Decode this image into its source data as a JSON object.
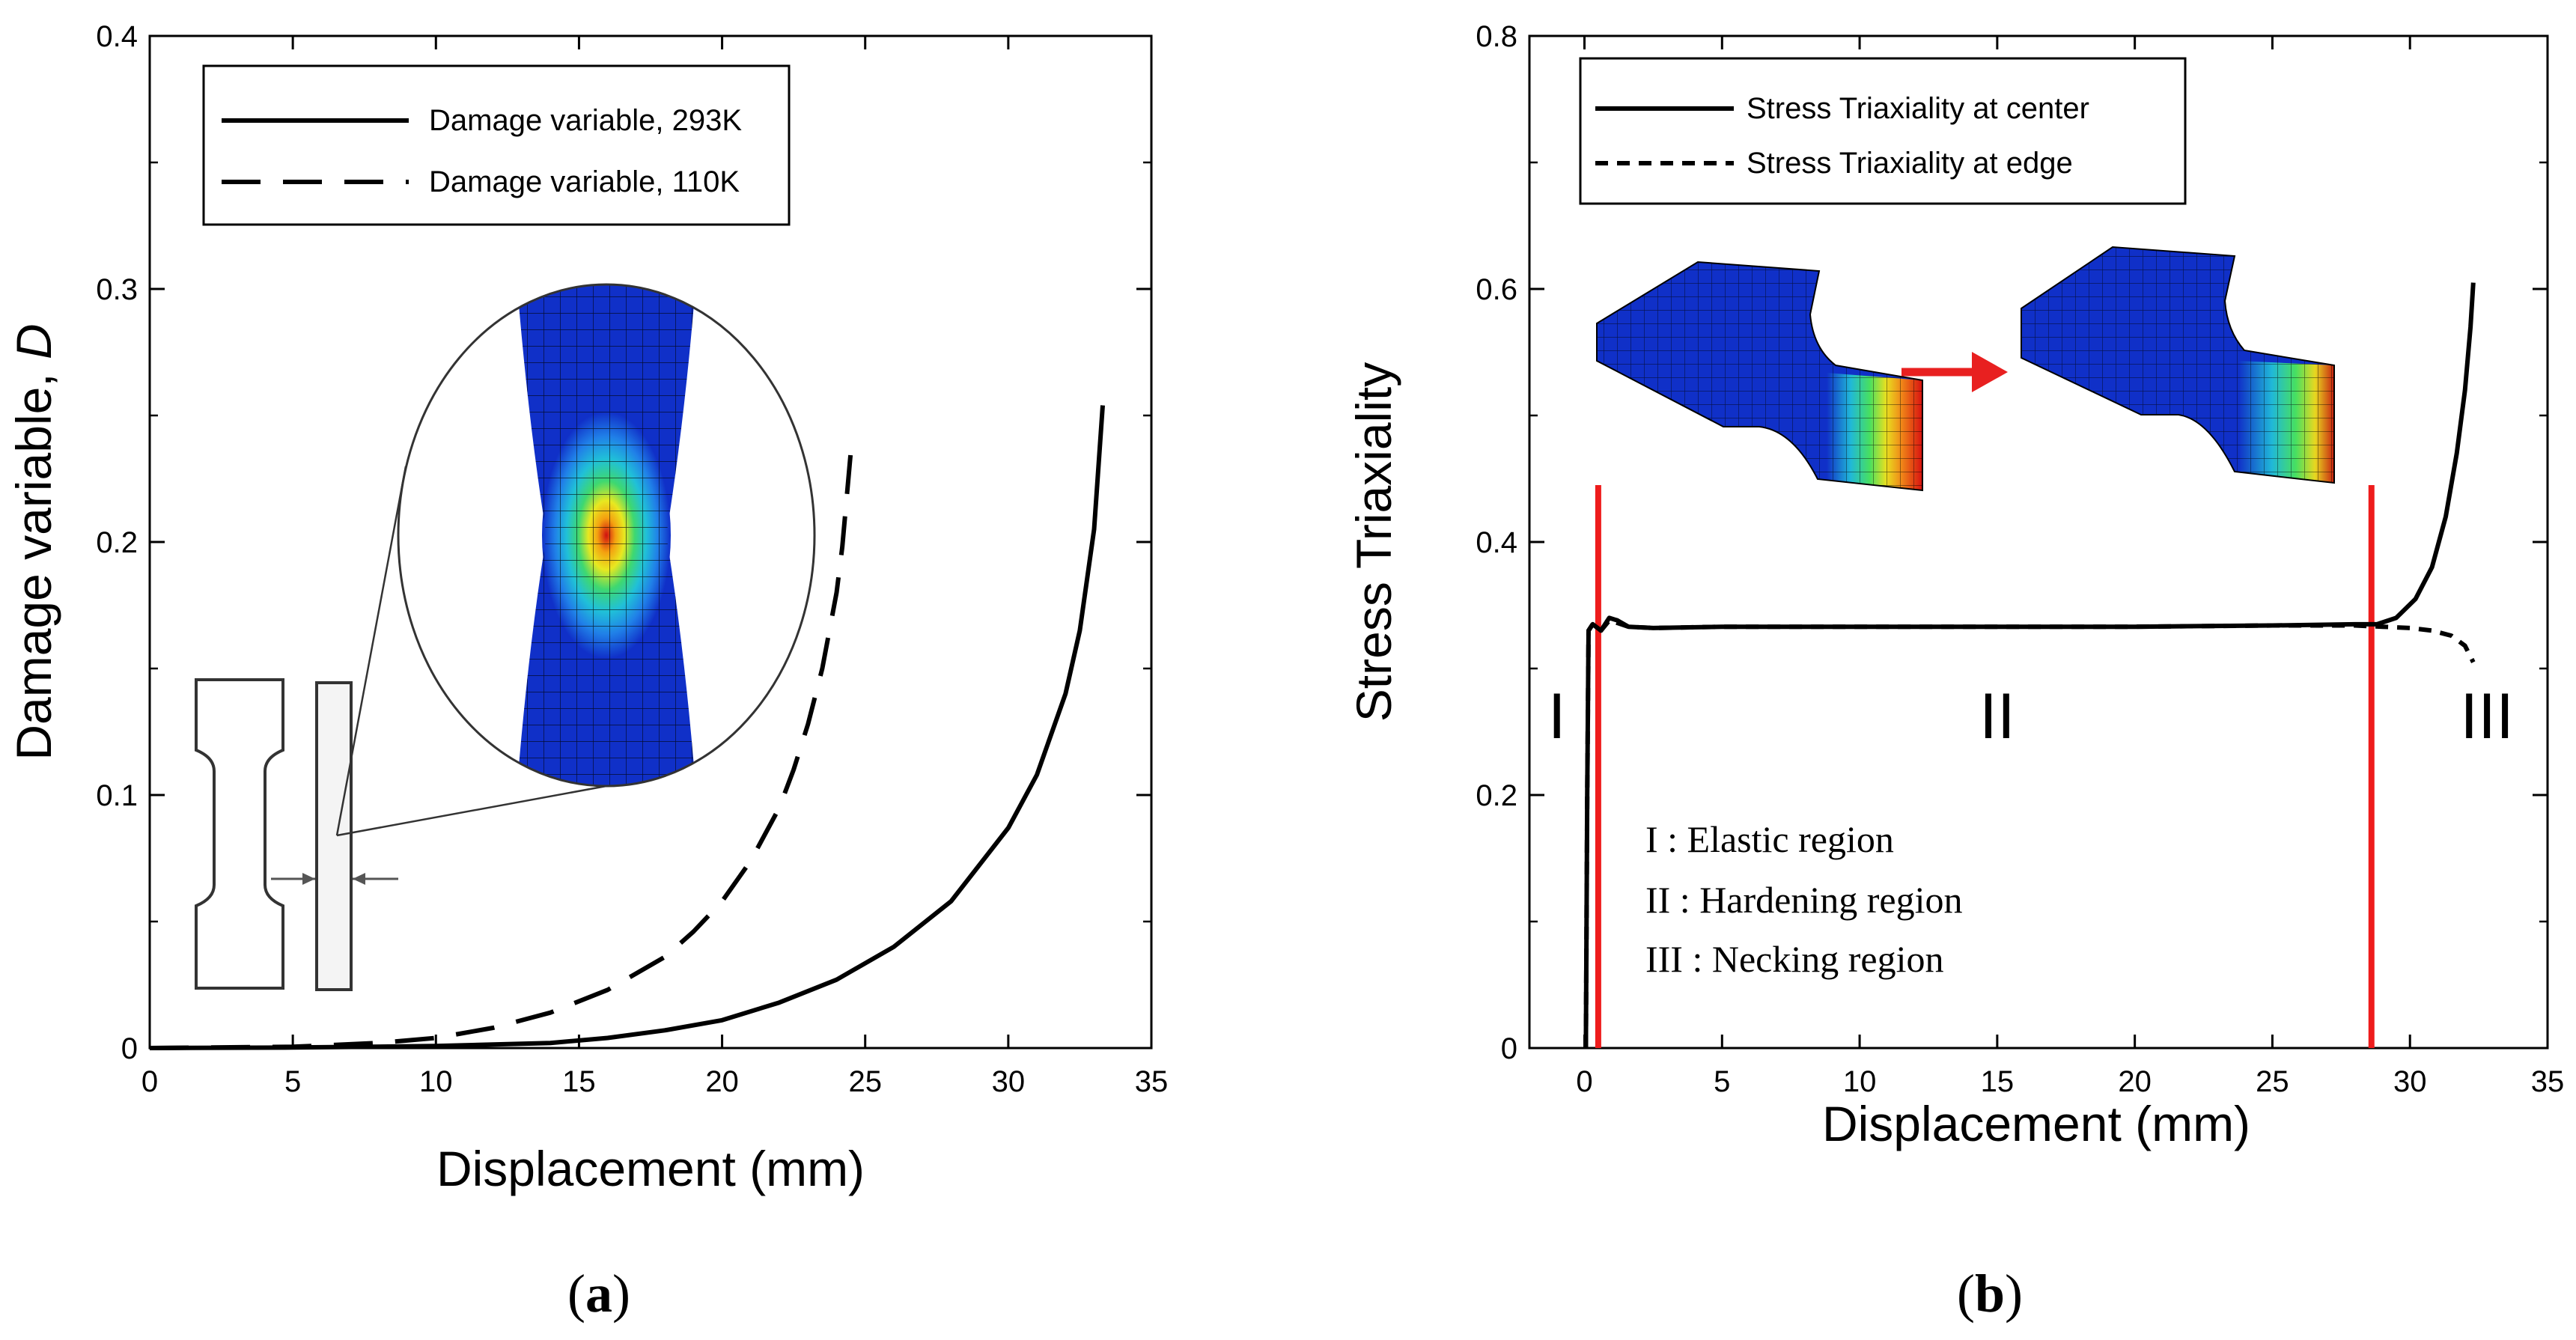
{
  "colors": {
    "line": "#000000",
    "marker": "#ee1c1c",
    "mesh_blue": "#1030c8"
  },
  "chart_data": [
    {
      "type": "line",
      "panel_label": "a",
      "xlabel": "Displacement (mm)",
      "ylabel": "Damage variable, ",
      "ylabel_italic": "D",
      "xlim": [
        0,
        35
      ],
      "ylim": [
        0,
        0.4
      ],
      "xticks": [
        0,
        5,
        10,
        15,
        20,
        25,
        30,
        35
      ],
      "yticks": [
        0,
        0.1,
        0.2,
        0.3,
        0.4
      ],
      "ytick_labels": [
        "0",
        "0.1",
        "0.2",
        "0.3",
        "0.4"
      ],
      "legend_position": "top-left",
      "series": [
        {
          "name": "Damage variable, 293K",
          "style": "solid",
          "x": [
            0,
            5,
            10,
            14,
            16,
            18,
            20,
            22,
            24,
            26,
            28,
            30,
            31,
            32,
            32.5,
            33,
            33.3
          ],
          "y": [
            0,
            0.0002,
            0.0008,
            0.002,
            0.004,
            0.007,
            0.011,
            0.018,
            0.027,
            0.04,
            0.058,
            0.087,
            0.108,
            0.14,
            0.165,
            0.205,
            0.254
          ]
        },
        {
          "name": "Damage variable, 110K",
          "style": "dashed",
          "x": [
            0,
            5,
            8,
            10,
            12,
            14,
            16,
            18,
            19,
            20,
            21,
            22,
            22.5,
            23,
            23.5,
            24,
            24.2,
            24.5
          ],
          "y": [
            0,
            0.0005,
            0.002,
            0.004,
            0.008,
            0.014,
            0.023,
            0.036,
            0.046,
            0.058,
            0.074,
            0.095,
            0.11,
            0.128,
            0.15,
            0.18,
            0.198,
            0.236
          ]
        }
      ]
    },
    {
      "type": "line",
      "panel_label": "b",
      "xlabel": "Displacement (mm)",
      "ylabel": "Stress Triaxiality",
      "xlim": [
        -2,
        35
      ],
      "ylim": [
        0,
        0.8
      ],
      "xticks": [
        0,
        5,
        10,
        15,
        20,
        25,
        30,
        35
      ],
      "yticks": [
        0,
        0.2,
        0.4,
        0.6,
        0.8
      ],
      "ytick_labels": [
        "0",
        "0.2",
        "0.4",
        "0.6",
        "0.8"
      ],
      "legend_position": "top-left",
      "series": [
        {
          "name": "Stress Triaxiality at center",
          "style": "solid",
          "x": [
            0.05,
            0.1,
            0.15,
            0.3,
            0.6,
            0.9,
            1.2,
            1.6,
            2.5,
            5,
            10,
            15,
            20,
            25,
            28,
            28.8,
            29.5,
            30.2,
            30.8,
            31.3,
            31.7,
            32.0,
            32.2,
            32.3
          ],
          "y": [
            0,
            0.2,
            0.33,
            0.335,
            0.33,
            0.34,
            0.338,
            0.333,
            0.332,
            0.333,
            0.333,
            0.333,
            0.333,
            0.334,
            0.335,
            0.335,
            0.34,
            0.355,
            0.38,
            0.42,
            0.47,
            0.52,
            0.57,
            0.605
          ]
        },
        {
          "name": "Stress Triaxiality at edge",
          "style": "dashed",
          "x": [
            0.05,
            0.1,
            0.15,
            0.3,
            0.6,
            0.9,
            1.2,
            1.6,
            2.5,
            5,
            10,
            15,
            20,
            25,
            28,
            29,
            30,
            30.8,
            31.5,
            32.0,
            32.3
          ],
          "y": [
            0,
            0.2,
            0.33,
            0.335,
            0.33,
            0.338,
            0.336,
            0.333,
            0.332,
            0.333,
            0.333,
            0.333,
            0.333,
            0.334,
            0.334,
            0.333,
            0.332,
            0.33,
            0.326,
            0.318,
            0.305
          ]
        }
      ],
      "vertical_markers": [
        0.5,
        28.6
      ],
      "region_labels": [
        {
          "text": "I",
          "x": -1.0,
          "y": 0.245
        },
        {
          "text": "II",
          "x": 15,
          "y": 0.245
        },
        {
          "text": "III",
          "x": 32.8,
          "y": 0.245
        }
      ],
      "region_legend": [
        "I : Elastic region",
        "II : Hardening region",
        "III : Necking region"
      ]
    }
  ]
}
